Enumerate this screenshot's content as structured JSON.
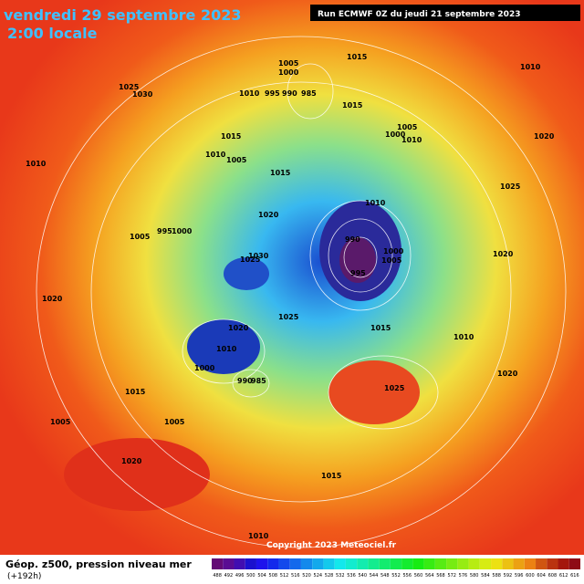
{
  "header": {
    "date": "vendredi 29 septembre 2023",
    "time": "2:00 locale",
    "run": "Run ECMWF 0Z du jeudi 21 septembre 2023"
  },
  "footer": {
    "title": "Géop. z500, pression niveau mer",
    "lead": "(+192h)",
    "copyright": "Copyright 2023 Meteociel.fr"
  },
  "scale": {
    "values": [
      488,
      492,
      496,
      500,
      504,
      508,
      512,
      516,
      520,
      524,
      528,
      532,
      536,
      540,
      544,
      548,
      552,
      556,
      560,
      564,
      568,
      572,
      576,
      580,
      584,
      588,
      592,
      596,
      600,
      604,
      608,
      612,
      616
    ]
  },
  "isobars": [
    "1005",
    "1000",
    "1015",
    "1010",
    "995",
    "990",
    "985",
    "1025",
    "1030",
    "1010",
    "1015",
    "1005",
    "1000",
    "1010",
    "1020",
    "1015",
    "1010",
    "1005",
    "1015",
    "1020",
    "1025",
    "1010",
    "995",
    "1000",
    "1005",
    "990",
    "1010",
    "1020",
    "1030",
    "1025",
    "1020",
    "1010",
    "1005",
    "1000",
    "990",
    "985",
    "995",
    "1015",
    "1020",
    "1025",
    "1015",
    "1010",
    "1025",
    "1020",
    "1015",
    "1010",
    "1005",
    "1000",
    "1005",
    "1020"
  ]
}
